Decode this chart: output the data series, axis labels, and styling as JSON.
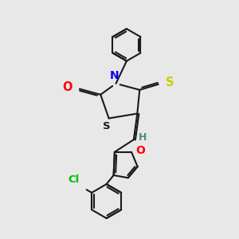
{
  "bg_color": "#e8e8e8",
  "bond_color": "#1a1a1a",
  "atom_colors": {
    "N": "#0000ff",
    "O": "#ff0000",
    "S_thio": "#cccc00",
    "S_ring": "#1a1a1a",
    "Cl": "#00bb00",
    "H": "#4a8a8a",
    "C": "#1a1a1a"
  },
  "line_width": 1.5,
  "font_size": 8.5,
  "figsize": [
    3.0,
    3.0
  ],
  "dpi": 100
}
